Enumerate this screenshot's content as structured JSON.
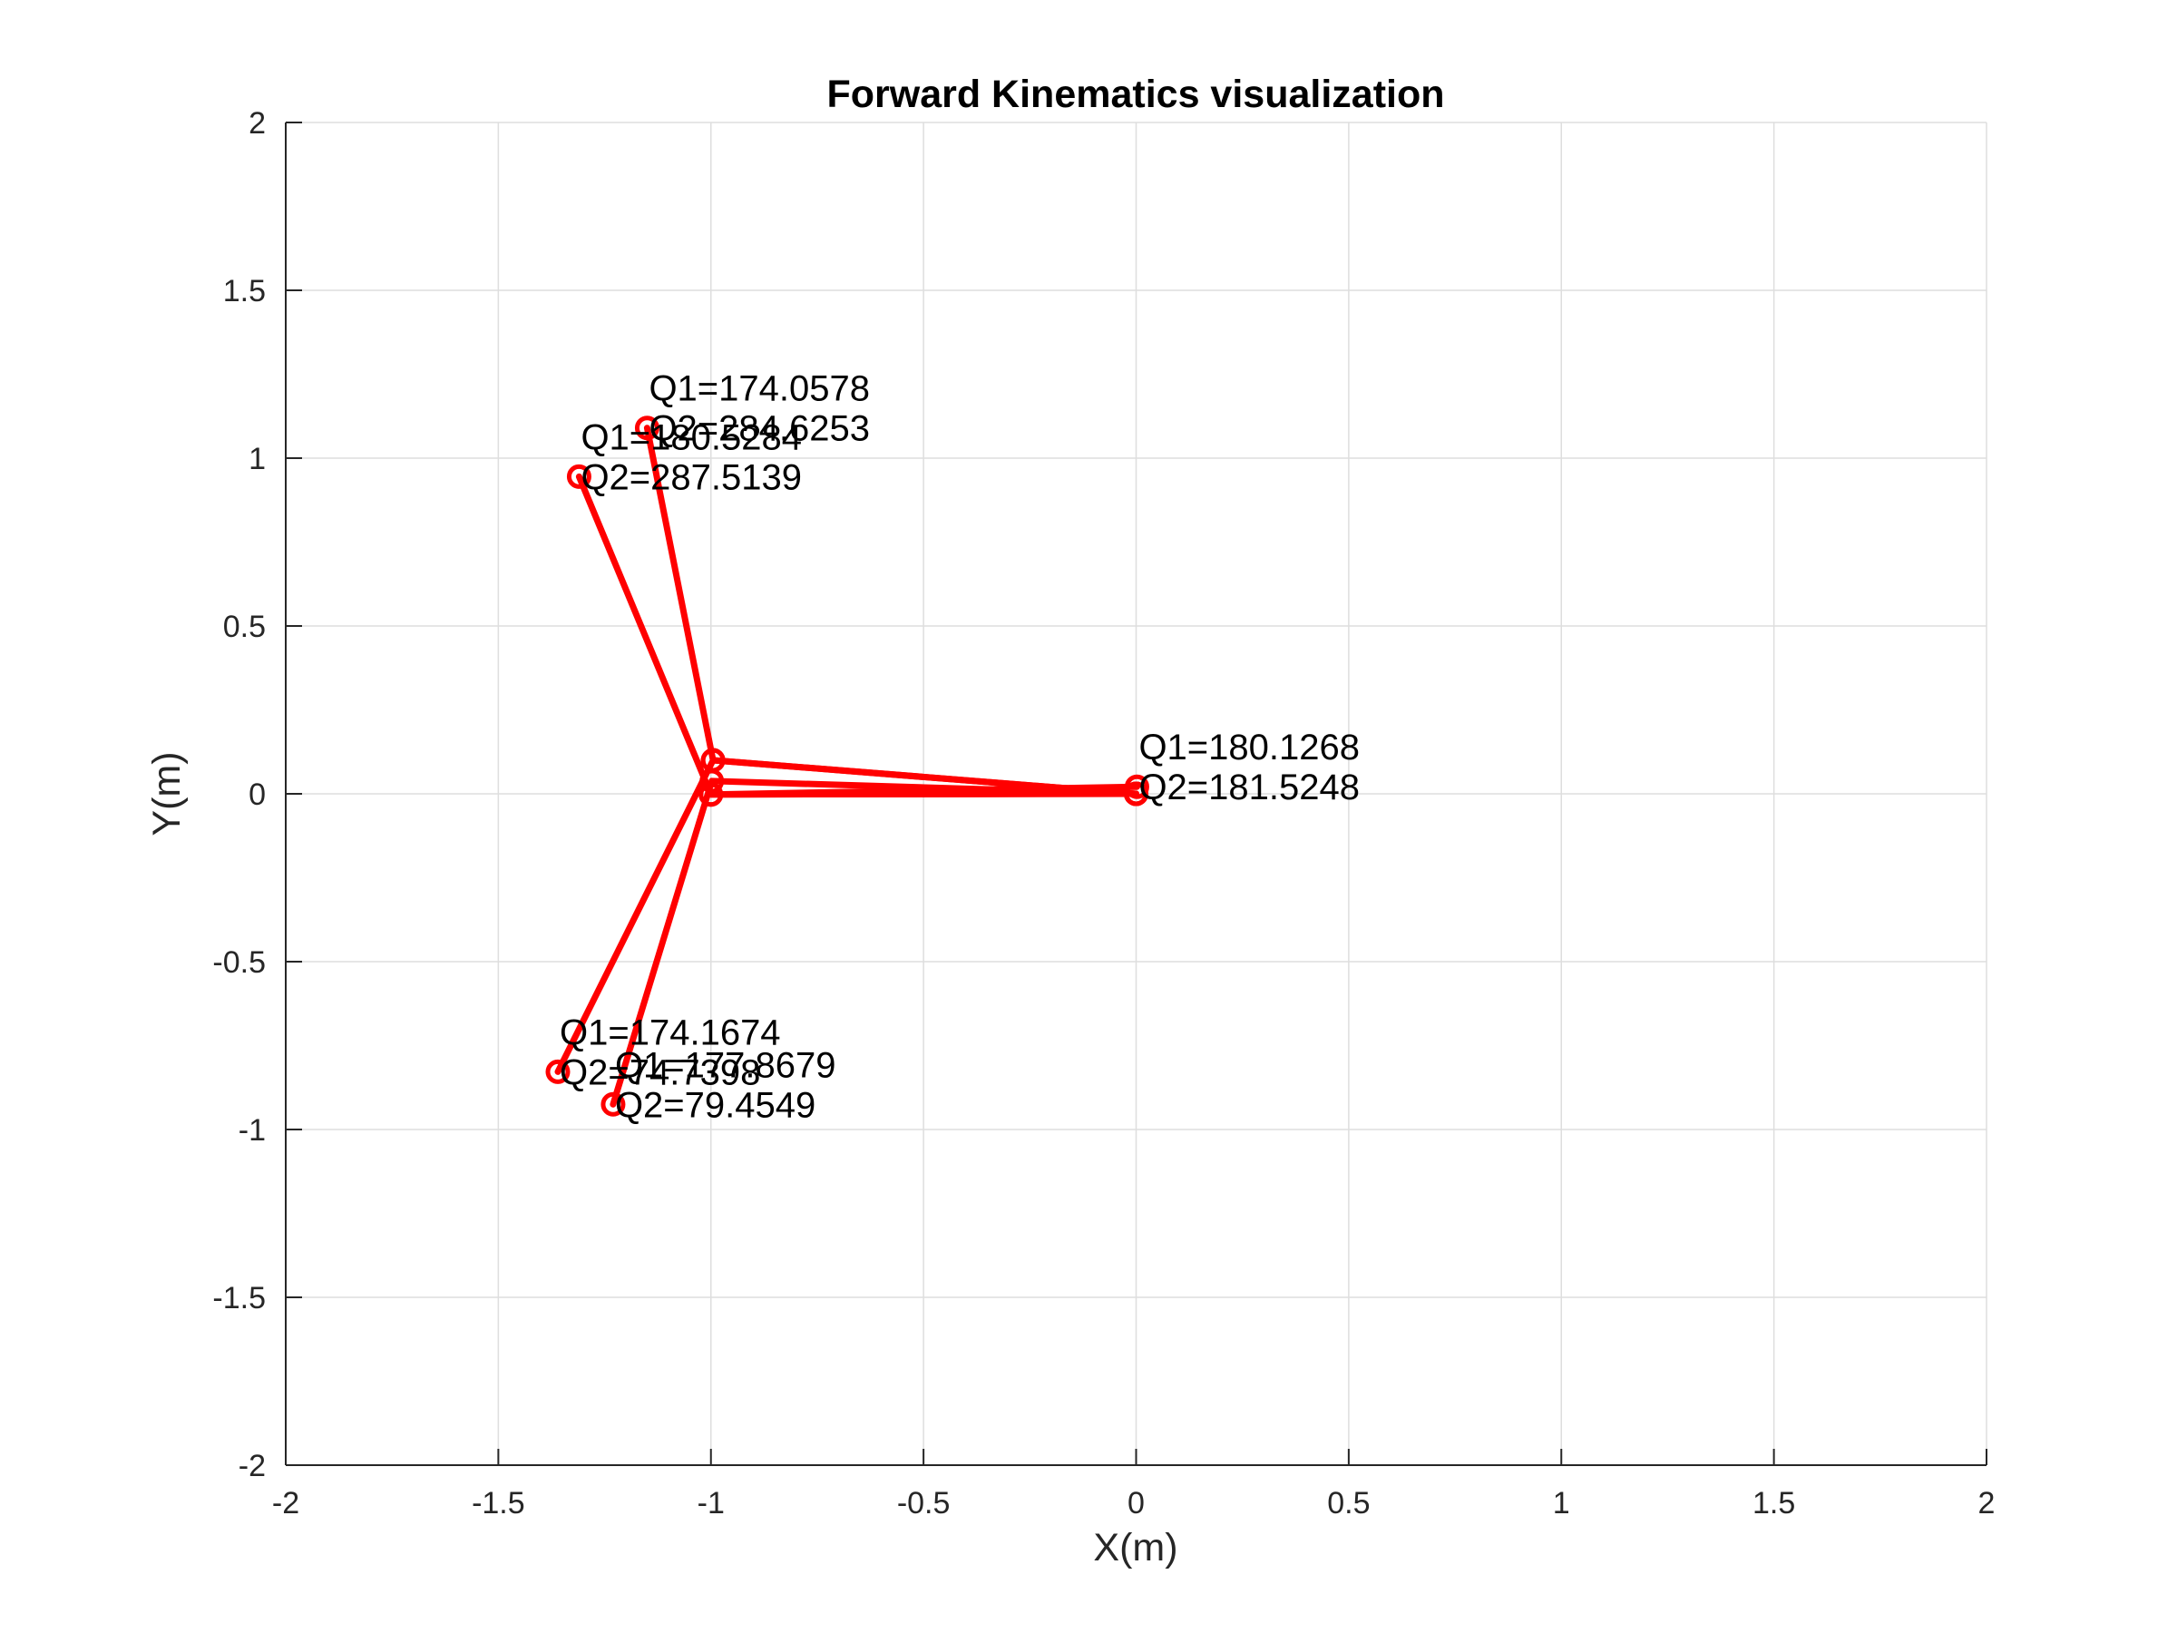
{
  "chart_data": {
    "type": "line",
    "title": "Forward Kinematics visualization",
    "xlabel": "X(m)",
    "ylabel": "Y(m)",
    "xlim": [
      -2,
      2
    ],
    "ylim": [
      -2,
      2
    ],
    "xticks": [
      -2,
      -1.5,
      -1,
      -0.5,
      0,
      0.5,
      1,
      1.5,
      2
    ],
    "yticks": [
      -2,
      -1.5,
      -1,
      -0.5,
      0,
      0.5,
      1,
      1.5,
      2
    ],
    "xtick_labels": [
      "-2",
      "-1.5",
      "-1",
      "-0.5",
      "0",
      "0.5",
      "1",
      "1.5",
      "2"
    ],
    "ytick_labels": [
      "-2",
      "-1.5",
      "-1",
      "-0.5",
      "0",
      "0.5",
      "1",
      "1.5",
      "2"
    ],
    "grid": true,
    "line_color": "#ff0000",
    "marker": "circle",
    "series": [
      {
        "x": [
          0,
          -1.0,
          -1.31
        ],
        "y": [
          0,
          -0.002,
          0.945
        ],
        "q1_label": "Q1=180.5284",
        "q2_label": "Q2=287.5139"
      },
      {
        "x": [
          0,
          -0.995,
          -1.15
        ],
        "y": [
          0,
          0.1,
          1.09
        ],
        "q1_label": "Q1=174.0578",
        "q2_label": "Q2=284.6253"
      },
      {
        "x": [
          0,
          -1.0,
          0.002
        ],
        "y": [
          0,
          -0.002,
          0.021
        ],
        "q1_label": "Q1=180.1268",
        "q2_label": "Q2=181.5248"
      },
      {
        "x": [
          0,
          -0.995,
          -1.36
        ],
        "y": [
          0,
          0.1,
          -0.828
        ],
        "q1_label": "Q1=174.1674",
        "q2_label": "Q2=74.7398"
      },
      {
        "x": [
          0,
          -0.998,
          -1.23
        ],
        "y": [
          0,
          0.038,
          -0.925
        ],
        "q1_label": "Q1=177.8679",
        "q2_label": "Q2=79.4549"
      }
    ]
  }
}
